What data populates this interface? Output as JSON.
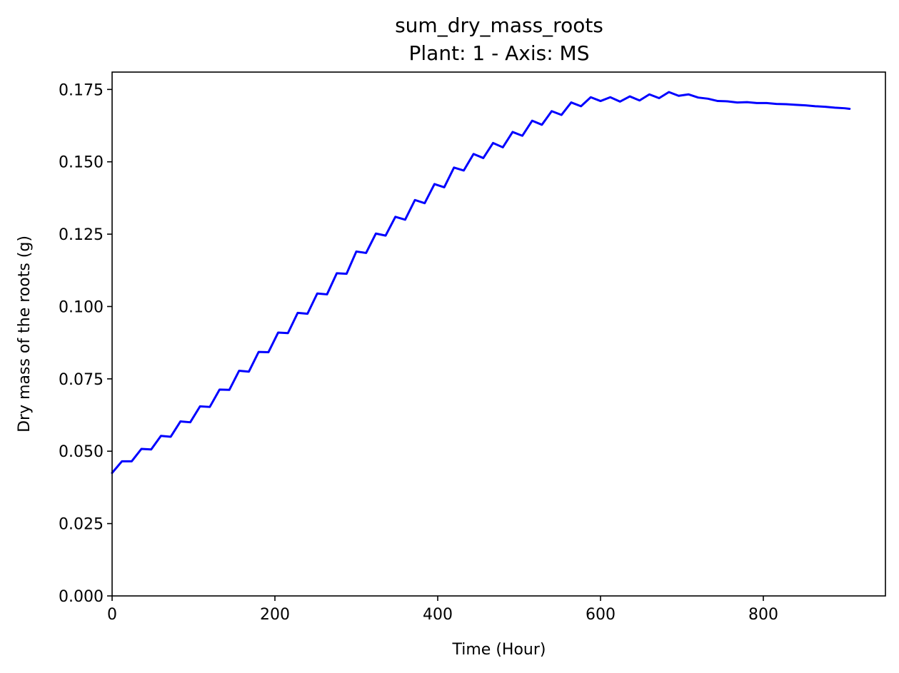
{
  "chart_data": {
    "type": "line",
    "title": "sum_dry_mass_roots",
    "subtitle": "Plant: 1 - Axis: MS",
    "xlabel": "Time (Hour)",
    "ylabel": "Dry mass of the roots (g)",
    "xlim": [
      0,
      950
    ],
    "ylim": [
      0,
      0.181
    ],
    "xticks": [
      0,
      200,
      400,
      600,
      800
    ],
    "xtick_labels": [
      "0",
      "200",
      "400",
      "600",
      "800"
    ],
    "yticks": [
      0,
      0.025,
      0.05,
      0.075,
      0.1,
      0.125,
      0.15,
      0.175
    ],
    "ytick_labels": [
      "0.000",
      "0.025",
      "0.050",
      "0.075",
      "0.100",
      "0.125",
      "0.150",
      "0.175"
    ],
    "grid": false,
    "series": [
      {
        "color": "#0000ff",
        "x": [
          0,
          12,
          24,
          36,
          48,
          60,
          72,
          84,
          96,
          108,
          120,
          132,
          144,
          156,
          168,
          180,
          192,
          204,
          216,
          228,
          240,
          252,
          264,
          276,
          288,
          300,
          312,
          324,
          336,
          348,
          360,
          372,
          384,
          396,
          408,
          420,
          432,
          444,
          456,
          468,
          480,
          492,
          504,
          516,
          528,
          540,
          552,
          564,
          576,
          588,
          600,
          612,
          624,
          636,
          648,
          660,
          672,
          684,
          696,
          708,
          720,
          732,
          744,
          756,
          768,
          780,
          792,
          804,
          816,
          828,
          840,
          852,
          864,
          876,
          888,
          900,
          906
        ],
        "y": [
          0.0425,
          0.0465,
          0.0465,
          0.0508,
          0.0506,
          0.0553,
          0.055,
          0.0603,
          0.06,
          0.0655,
          0.0653,
          0.0713,
          0.0712,
          0.0778,
          0.0775,
          0.0843,
          0.0842,
          0.091,
          0.0908,
          0.0978,
          0.0975,
          0.1045,
          0.1042,
          0.1115,
          0.1113,
          0.119,
          0.1185,
          0.1252,
          0.1245,
          0.131,
          0.13,
          0.1368,
          0.1357,
          0.1423,
          0.1412,
          0.148,
          0.147,
          0.1527,
          0.1513,
          0.1565,
          0.155,
          0.1603,
          0.159,
          0.1642,
          0.1628,
          0.1675,
          0.1662,
          0.1705,
          0.1692,
          0.1723,
          0.171,
          0.1723,
          0.1708,
          0.1726,
          0.1712,
          0.1733,
          0.172,
          0.1741,
          0.1728,
          0.1733,
          0.1722,
          0.1718,
          0.171,
          0.1709,
          0.1705,
          0.1706,
          0.1703,
          0.1703,
          0.17,
          0.1699,
          0.1697,
          0.1695,
          0.1692,
          0.169,
          0.1687,
          0.1685,
          0.1683
        ]
      }
    ]
  }
}
